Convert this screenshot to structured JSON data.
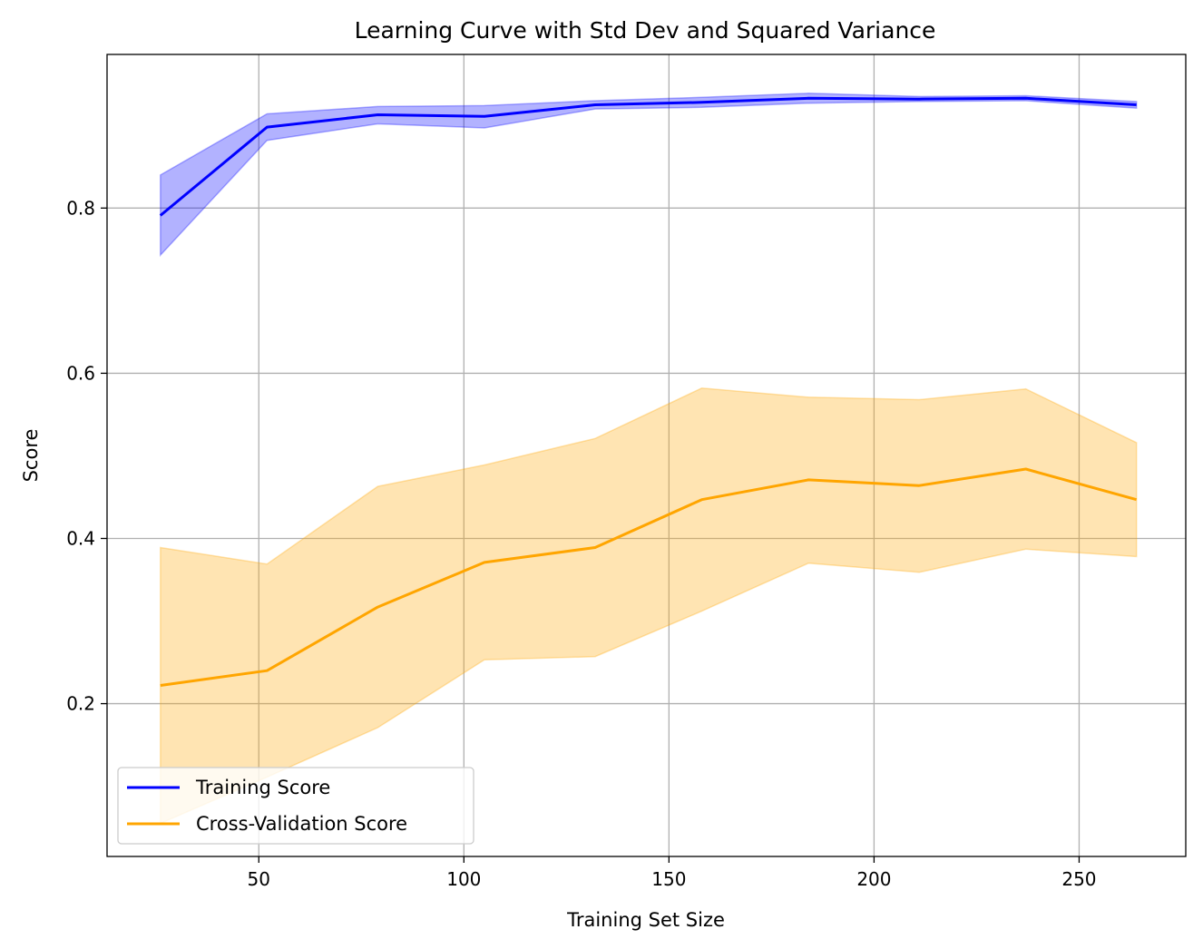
{
  "chart_data": {
    "type": "line",
    "title": "Learning Curve with Std Dev and Squared Variance",
    "xlabel": "Training Set Size",
    "ylabel": "Score",
    "xlim": [
      13,
      276
    ],
    "ylim": [
      0.015,
      0.986
    ],
    "xticks": [
      50,
      100,
      150,
      200,
      250
    ],
    "xtick_labels": [
      "50",
      "100",
      "150",
      "200",
      "250"
    ],
    "yticks": [
      0.2,
      0.4,
      0.6,
      0.8
    ],
    "ytick_labels": [
      "0.2",
      "0.4",
      "0.6",
      "0.8"
    ],
    "grid": true,
    "legend_position": "lower-left",
    "x": [
      26,
      52,
      79,
      105,
      132,
      158,
      184,
      211,
      237,
      264
    ],
    "series": [
      {
        "name": "Training Score",
        "color": "#0000ff",
        "band_color": "#0000ff",
        "values": [
          0.791,
          0.898,
          0.913,
          0.911,
          0.925,
          0.928,
          0.933,
          0.932,
          0.933,
          0.925
        ],
        "band_upper": [
          0.84,
          0.914,
          0.923,
          0.924,
          0.93,
          0.934,
          0.939,
          0.935,
          0.936,
          0.929
        ],
        "band_lower": [
          0.743,
          0.882,
          0.902,
          0.897,
          0.92,
          0.922,
          0.927,
          0.929,
          0.93,
          0.921
        ]
      },
      {
        "name": "Cross-Validation Score",
        "color": "#ffa500",
        "band_color": "#ffa500",
        "values": [
          0.222,
          0.24,
          0.317,
          0.371,
          0.389,
          0.447,
          0.471,
          0.464,
          0.484,
          0.447
        ],
        "band_upper": [
          0.389,
          0.369,
          0.463,
          0.489,
          0.521,
          0.582,
          0.571,
          0.568,
          0.581,
          0.516
        ],
        "band_lower": [
          0.055,
          0.111,
          0.171,
          0.253,
          0.257,
          0.312,
          0.37,
          0.359,
          0.387,
          0.378
        ]
      }
    ]
  }
}
